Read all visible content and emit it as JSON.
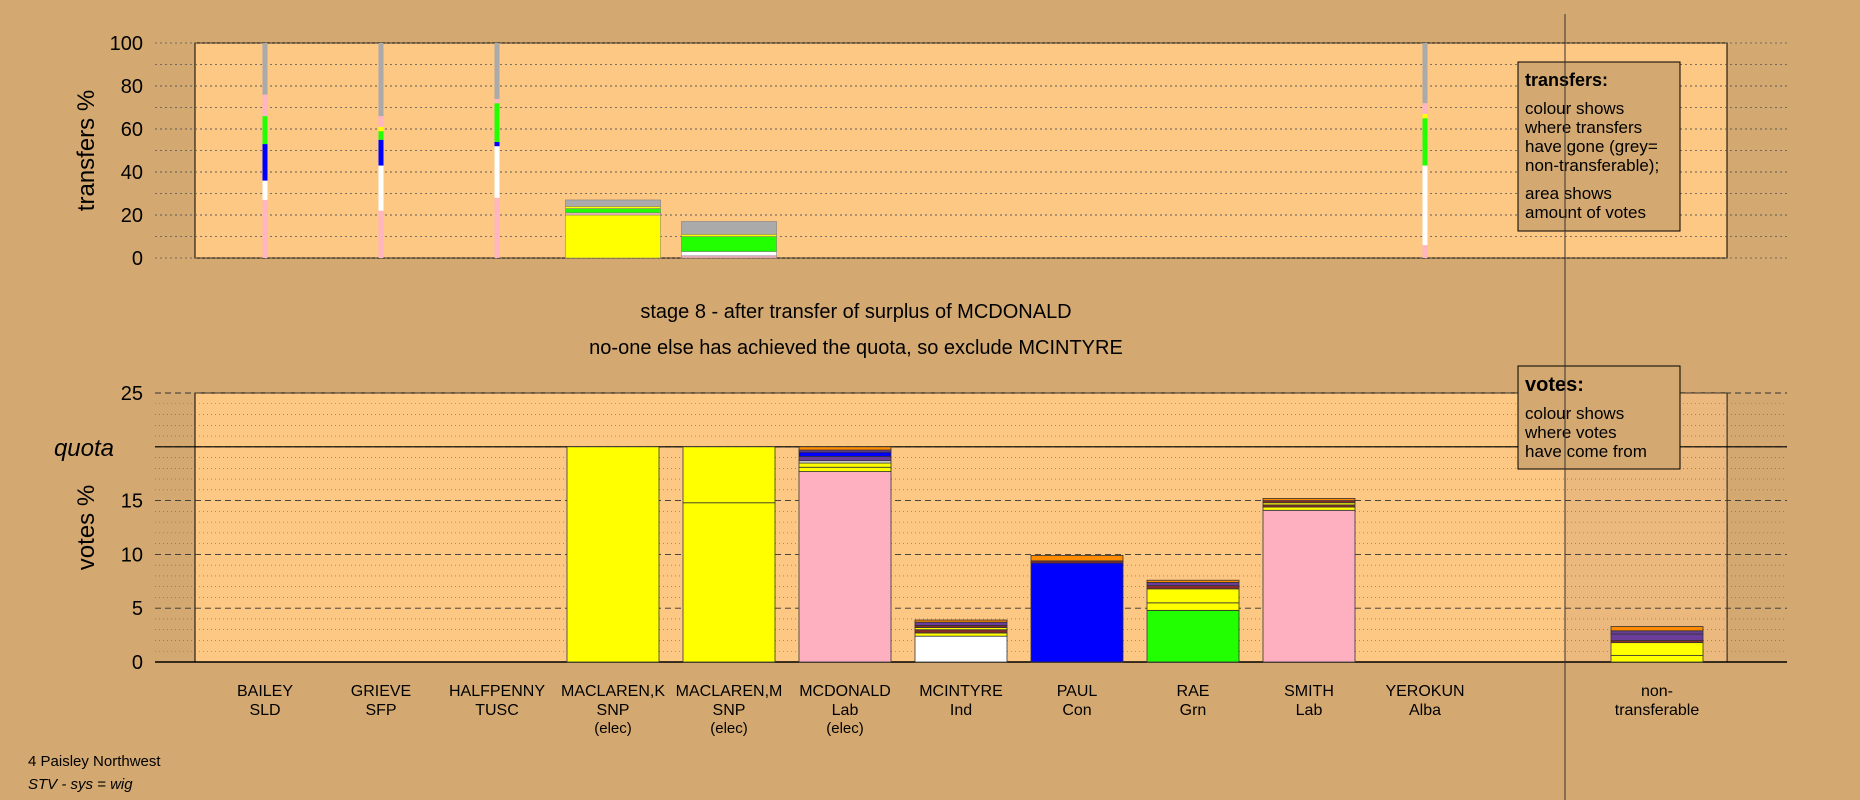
{
  "stage": {
    "line1": "stage 8 - after transfer of surplus of MCDONALD",
    "line2": "no-one else has achieved the quota, so exclude MCINTYRE"
  },
  "footer": {
    "ward": "4 Paisley Northwest",
    "system": "STV - sys = wig"
  },
  "legend_transfers": {
    "title": "transfers:",
    "lines": [
      "colour shows",
      "where transfers",
      "have gone (grey=",
      "non-transferable);",
      "area shows",
      "amount of votes"
    ]
  },
  "legend_votes": {
    "title": "votes:",
    "lines": [
      "colour shows",
      "where votes",
      "have come from"
    ]
  },
  "colors": {
    "background": "#d4a971",
    "plot": "#fdc784",
    "SLD": "#ffb6c1",
    "SNP": "#ffff00",
    "Lab": "#ffb0c0",
    "Ind": "#ffffff",
    "Con": "#0000ff",
    "Grn": "#22ff00",
    "Alba": "#6a3d9a",
    "TUSC": "#8b2a2a",
    "SFP": "#ff8c00",
    "nontransferable": "#aaaaaa"
  },
  "chart_data": [
    {
      "type": "bar",
      "name": "transfers",
      "ylabel": "transfers %",
      "ylim": [
        0,
        100
      ],
      "yticks": [
        0,
        20,
        40,
        60,
        80,
        100
      ],
      "categories": [
        "BAILEY",
        "GRIEVE",
        "HALFPENNY",
        "MACLAREN,K",
        "MACLAREN,M",
        "MCDONALD",
        "MCINTYRE",
        "PAUL",
        "RAE",
        "SMITH",
        "YEROKUN"
      ],
      "bar_widths_pct_of_votes": [
        0.3,
        0.3,
        0.3,
        8.5,
        8.5,
        0,
        0,
        0,
        0,
        0,
        0.3
      ],
      "stacks": [
        [
          {
            "c": "SLD",
            "v": 27
          },
          {
            "c": "Ind",
            "v": 9
          },
          {
            "c": "Con",
            "v": 17
          },
          {
            "c": "Grn",
            "v": 13
          },
          {
            "c": "SLD",
            "v": 10
          },
          {
            "c": "nontransferable",
            "v": 24
          }
        ],
        [
          {
            "c": "SLD",
            "v": 22
          },
          {
            "c": "Ind",
            "v": 21
          },
          {
            "c": "Con",
            "v": 12
          },
          {
            "c": "Grn",
            "v": 4
          },
          {
            "c": "SNP",
            "v": 2
          },
          {
            "c": "SLD",
            "v": 5
          },
          {
            "c": "nontransferable",
            "v": 34
          }
        ],
        [
          {
            "c": "SLD",
            "v": 28
          },
          {
            "c": "Ind",
            "v": 24
          },
          {
            "c": "Con",
            "v": 2
          },
          {
            "c": "Grn",
            "v": 18
          },
          {
            "c": "SLD",
            "v": 2
          },
          {
            "c": "nontransferable",
            "v": 26
          }
        ],
        [
          {
            "c": "SNP",
            "v": 20
          },
          {
            "c": "SLD",
            "v": 1
          },
          {
            "c": "Grn",
            "v": 2
          },
          {
            "c": "SNP",
            "v": 1
          },
          {
            "c": "nontransferable",
            "v": 3
          }
        ],
        [
          {
            "c": "SLD",
            "v": 1
          },
          {
            "c": "Ind",
            "v": 2
          },
          {
            "c": "Grn",
            "v": 7
          },
          {
            "c": "SNP",
            "v": 1
          },
          {
            "c": "nontransferable",
            "v": 6
          }
        ],
        [],
        [],
        [],
        [],
        [],
        [
          {
            "c": "SLD",
            "v": 6
          },
          {
            "c": "Ind",
            "v": 37
          },
          {
            "c": "Grn",
            "v": 22
          },
          {
            "c": "SNP",
            "v": 2
          },
          {
            "c": "SLD",
            "v": 5
          },
          {
            "c": "nontransferable",
            "v": 28
          }
        ]
      ]
    },
    {
      "type": "bar",
      "name": "votes",
      "ylabel": "votes %",
      "ylim": [
        0,
        25
      ],
      "yticks": [
        0,
        5,
        10,
        15,
        20,
        25
      ],
      "quota": 20,
      "quota_label": "quota",
      "candidates": [
        {
          "name": "BAILEY",
          "party": "SLD",
          "status": ""
        },
        {
          "name": "GRIEVE",
          "party": "SFP",
          "status": ""
        },
        {
          "name": "HALFPENNY",
          "party": "TUSC",
          "status": ""
        },
        {
          "name": "MACLAREN,K",
          "party": "SNP",
          "status": "(elec)"
        },
        {
          "name": "MACLAREN,M",
          "party": "SNP",
          "status": "(elec)"
        },
        {
          "name": "MCDONALD",
          "party": "Lab",
          "status": "(elec)"
        },
        {
          "name": "MCINTYRE",
          "party": "Ind",
          "status": ""
        },
        {
          "name": "PAUL",
          "party": "Con",
          "status": ""
        },
        {
          "name": "RAE",
          "party": "Grn",
          "status": ""
        },
        {
          "name": "SMITH",
          "party": "Lab",
          "status": ""
        },
        {
          "name": "YEROKUN",
          "party": "Alba",
          "status": ""
        }
      ],
      "nontransferable_label": [
        "non-",
        "transferable"
      ],
      "stacks": [
        [],
        [],
        [],
        [
          {
            "c": "SNP",
            "v": 20
          }
        ],
        [
          {
            "c": "SNP",
            "v": 14.8
          },
          {
            "c": "SNP",
            "v": 5.2
          }
        ],
        [
          {
            "c": "Lab",
            "v": 17.7
          },
          {
            "c": "SNP",
            "v": 0.4
          },
          {
            "c": "SNP",
            "v": 0.4
          },
          {
            "c": "Ind",
            "v": 0.2
          },
          {
            "c": "Alba",
            "v": 0.4
          },
          {
            "c": "Con",
            "v": 0.4
          },
          {
            "c": "Alba",
            "v": 0.2
          },
          {
            "c": "SFP",
            "v": 0.3
          }
        ],
        [
          {
            "c": "Ind",
            "v": 2.4
          },
          {
            "c": "SNP",
            "v": 0.3
          },
          {
            "c": "TUSC",
            "v": 0.3
          },
          {
            "c": "SNP",
            "v": 0.2
          },
          {
            "c": "TUSC",
            "v": 0.2
          },
          {
            "c": "Alba",
            "v": 0.3
          },
          {
            "c": "SFP",
            "v": 0.2
          }
        ],
        [
          {
            "c": "Con",
            "v": 9.2
          },
          {
            "c": "TUSC",
            "v": 0.2
          },
          {
            "c": "SFP",
            "v": 0.5
          }
        ],
        [
          {
            "c": "Grn",
            "v": 4.8
          },
          {
            "c": "SNP",
            "v": 0.7
          },
          {
            "c": "SNP",
            "v": 1.3
          },
          {
            "c": "TUSC",
            "v": 0.3
          },
          {
            "c": "Alba",
            "v": 0.3
          },
          {
            "c": "SFP",
            "v": 0.2
          }
        ],
        [
          {
            "c": "Lab",
            "v": 14.1
          },
          {
            "c": "SNP",
            "v": 0.3
          },
          {
            "c": "TUSC",
            "v": 0.2
          },
          {
            "c": "SNP",
            "v": 0.2
          },
          {
            "c": "TUSC",
            "v": 0.2
          },
          {
            "c": "SFP",
            "v": 0.2
          }
        ],
        []
      ],
      "nontransferable_stack": [
        {
          "c": "SNP",
          "v": 0.6
        },
        {
          "c": "SNP",
          "v": 1.2
        },
        {
          "c": "TUSC",
          "v": 0.2
        },
        {
          "c": "Alba",
          "v": 0.6
        },
        {
          "c": "Alba",
          "v": 0.3
        },
        {
          "c": "SFP",
          "v": 0.4
        }
      ]
    }
  ]
}
